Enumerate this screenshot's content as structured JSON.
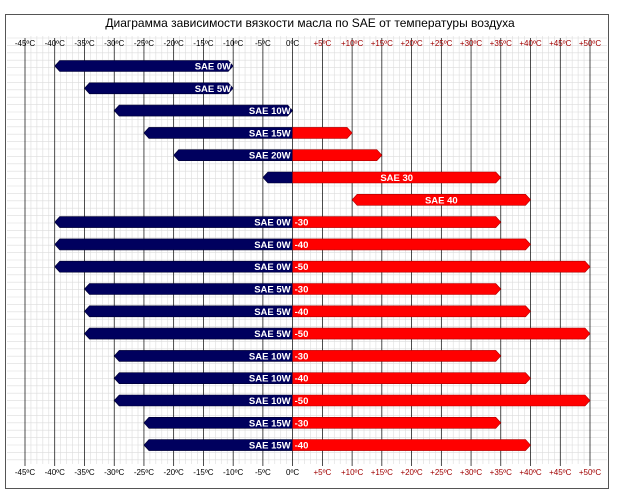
{
  "chart_data": {
    "type": "bar",
    "title": "Диаграмма зависимости вязкости масла по SAE от температуры воздуха",
    "x_ticks": [
      "-45ºC",
      "-40ºC",
      "-35ºC",
      "-30ºC",
      "-25ºC",
      "-20ºC",
      "-15ºC",
      "-10ºC",
      "-5ºC",
      "0ºC",
      "+5ºC",
      "+10ºC",
      "+15ºC",
      "+20ºC",
      "+25ºC",
      "+30ºC",
      "+35ºC",
      "+40ºC",
      "+45ºC",
      "+50ºC"
    ],
    "x_range": [
      -45,
      50
    ],
    "grid": true,
    "colors": {
      "cold": "#00005e",
      "warm": "#ff0000",
      "negative_tick": "#000000",
      "positive_tick": "#a00000",
      "grid_minor": "#dcdcdc",
      "grid_major": "#000000"
    },
    "rows": [
      {
        "label_left": "SAE 0W",
        "label_right": "",
        "min": -40,
        "max": -10
      },
      {
        "label_left": "SAE 5W",
        "label_right": "",
        "min": -35,
        "max": -10
      },
      {
        "label_left": "SAE 10W",
        "label_right": "",
        "min": -30,
        "max": 0
      },
      {
        "label_left": "SAE 15W",
        "label_right": "",
        "min": -25,
        "max": 10
      },
      {
        "label_left": "SAE 20W",
        "label_right": "",
        "min": -20,
        "max": 15
      },
      {
        "label_left": "",
        "label_right": "SAE 30",
        "min": -5,
        "max": 35
      },
      {
        "label_left": "",
        "label_right": "SAE 40",
        "min": 10,
        "max": 40
      },
      {
        "label_left": "SAE 0W",
        "label_right": "-30",
        "min": -40,
        "max": 35
      },
      {
        "label_left": "SAE 0W",
        "label_right": "-40",
        "min": -40,
        "max": 40
      },
      {
        "label_left": "SAE 0W",
        "label_right": "-50",
        "min": -40,
        "max": 50
      },
      {
        "label_left": "SAE 5W",
        "label_right": "-30",
        "min": -35,
        "max": 35
      },
      {
        "label_left": "SAE 5W",
        "label_right": "-40",
        "min": -35,
        "max": 40
      },
      {
        "label_left": "SAE 5W",
        "label_right": "-50",
        "min": -35,
        "max": 50
      },
      {
        "label_left": "SAE 10W",
        "label_right": "-30",
        "min": -30,
        "max": 35
      },
      {
        "label_left": "SAE 10W",
        "label_right": "-40",
        "min": -30,
        "max": 40
      },
      {
        "label_left": "SAE 10W",
        "label_right": "-50",
        "min": -30,
        "max": 50
      },
      {
        "label_left": "SAE 15W",
        "label_right": "-30",
        "min": -25,
        "max": 35
      },
      {
        "label_left": "SAE 15W",
        "label_right": "-40",
        "min": -25,
        "max": 40
      }
    ]
  }
}
